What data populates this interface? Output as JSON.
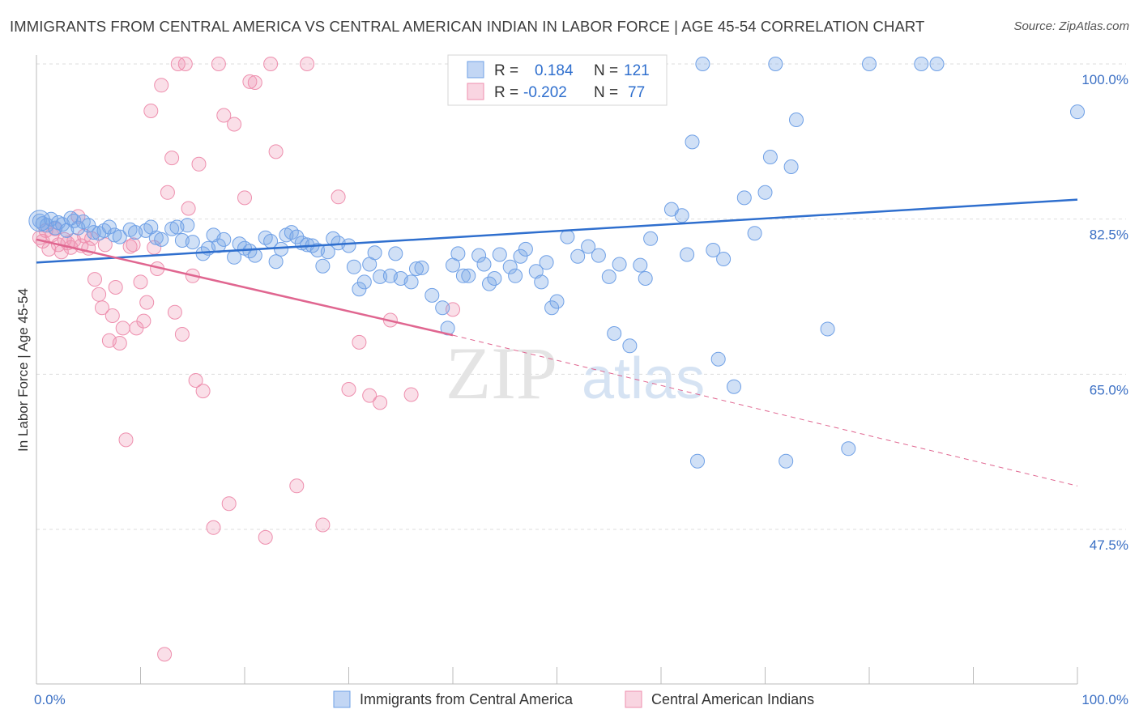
{
  "title": "IMMIGRANTS FROM CENTRAL AMERICA VS CENTRAL AMERICAN INDIAN IN LABOR FORCE | AGE 45-54 CORRELATION CHART",
  "source": "Source: ZipAtlas.com",
  "watermark": {
    "zip": "ZIP",
    "atlas": "atlas"
  },
  "colors": {
    "blue": "#6fa0e6",
    "blue_fill": "rgba(120,165,230,0.35)",
    "blue_line": "#2f6fce",
    "pink": "#ee8fae",
    "pink_fill": "rgba(240,150,180,0.30)",
    "pink_line": "#e06690",
    "tick": "#3a6fc4"
  },
  "stats": {
    "blue": {
      "r_label": "R =",
      "r": "0.184",
      "n_label": "N =",
      "n": "121"
    },
    "pink": {
      "r_label": "R =",
      "r": "-0.202",
      "n_label": "N =",
      "n": "77"
    }
  },
  "chart_data": {
    "type": "scatter",
    "ylabel": "In Labor Force | Age 45-54",
    "xlim": [
      0,
      100
    ],
    "ylim": [
      30,
      101
    ],
    "x_tick_labels": [
      "0.0%",
      "100.0%"
    ],
    "y_ticks": [
      {
        "value": 100,
        "label": "100.0%"
      },
      {
        "value": 82.5,
        "label": "82.5%"
      },
      {
        "value": 65,
        "label": "65.0%"
      },
      {
        "value": 47.5,
        "label": "47.5%"
      }
    ],
    "grid": "horizontal-dashed",
    "legend_position": "bottom-center",
    "series": [
      {
        "name": "Immigrants from Central America",
        "color": "#6fa0e6",
        "trend": {
          "x": [
            0,
            100
          ],
          "y": [
            77.6,
            84.7
          ],
          "dashed": false
        },
        "points": [
          [
            0.3,
            82.3
          ],
          [
            0.6,
            82.0
          ],
          [
            1.0,
            81.8
          ],
          [
            1.4,
            82.5
          ],
          [
            1.8,
            81.5
          ],
          [
            2.1,
            82.1
          ],
          [
            2.5,
            81.9
          ],
          [
            2.9,
            81.2
          ],
          [
            3.3,
            82.6
          ],
          [
            3.6,
            82.3
          ],
          [
            4.0,
            81.5
          ],
          [
            4.5,
            82.2
          ],
          [
            5.0,
            81.8
          ],
          [
            5.5,
            81.0
          ],
          [
            6.0,
            80.9
          ],
          [
            6.5,
            81.2
          ],
          [
            7.0,
            81.6
          ],
          [
            7.5,
            80.7
          ],
          [
            8.0,
            80.5
          ],
          [
            9.0,
            81.3
          ],
          [
            9.5,
            81.0
          ],
          [
            10.5,
            81.2
          ],
          [
            11.0,
            81.6
          ],
          [
            11.5,
            80.4
          ],
          [
            12.0,
            80.2
          ],
          [
            13.0,
            81.4
          ],
          [
            13.5,
            81.6
          ],
          [
            14.0,
            80.1
          ],
          [
            14.5,
            81.8
          ],
          [
            15.0,
            79.9
          ],
          [
            16.0,
            78.6
          ],
          [
            16.5,
            79.2
          ],
          [
            17.0,
            80.7
          ],
          [
            17.5,
            79.5
          ],
          [
            18.0,
            80.2
          ],
          [
            19.0,
            78.2
          ],
          [
            19.5,
            79.7
          ],
          [
            20.0,
            79.2
          ],
          [
            20.5,
            78.9
          ],
          [
            21.0,
            78.4
          ],
          [
            22.0,
            80.4
          ],
          [
            22.5,
            80.0
          ],
          [
            23.0,
            77.7
          ],
          [
            23.5,
            79.1
          ],
          [
            24.0,
            80.7
          ],
          [
            24.5,
            81.0
          ],
          [
            25.0,
            80.5
          ],
          [
            25.5,
            79.8
          ],
          [
            26.0,
            79.6
          ],
          [
            26.5,
            79.5
          ],
          [
            27.0,
            79.0
          ],
          [
            27.5,
            77.2
          ],
          [
            28.0,
            78.8
          ],
          [
            28.5,
            80.3
          ],
          [
            29.0,
            79.8
          ],
          [
            30.0,
            79.5
          ],
          [
            30.5,
            77.1
          ],
          [
            31.0,
            74.6
          ],
          [
            31.5,
            75.4
          ],
          [
            32.0,
            77.4
          ],
          [
            32.5,
            78.7
          ],
          [
            33.0,
            76.0
          ],
          [
            34.0,
            76.1
          ],
          [
            34.5,
            78.6
          ],
          [
            35.0,
            75.8
          ],
          [
            36.0,
            75.4
          ],
          [
            36.5,
            76.9
          ],
          [
            37.0,
            77.0
          ],
          [
            38.0,
            73.9
          ],
          [
            39.0,
            72.5
          ],
          [
            39.5,
            70.2
          ],
          [
            40.0,
            77.3
          ],
          [
            40.5,
            78.6
          ],
          [
            41.0,
            76.1
          ],
          [
            41.5,
            76.1
          ],
          [
            42.5,
            78.4
          ],
          [
            43.0,
            77.4
          ],
          [
            43.5,
            75.2
          ],
          [
            44.0,
            75.8
          ],
          [
            44.5,
            78.5
          ],
          [
            45.5,
            77.1
          ],
          [
            46.0,
            76.1
          ],
          [
            46.5,
            78.3
          ],
          [
            47.0,
            79.1
          ],
          [
            48.0,
            76.6
          ],
          [
            48.5,
            75.4
          ],
          [
            49.0,
            77.6
          ],
          [
            49.5,
            72.5
          ],
          [
            50.0,
            73.2
          ],
          [
            51.0,
            80.5
          ],
          [
            52.0,
            78.3
          ],
          [
            53.0,
            79.4
          ],
          [
            54.0,
            78.4
          ],
          [
            55.0,
            76.0
          ],
          [
            55.5,
            69.6
          ],
          [
            56.0,
            77.4
          ],
          [
            57.0,
            68.2
          ],
          [
            58.0,
            77.3
          ],
          [
            58.5,
            75.8
          ],
          [
            59.0,
            80.3
          ],
          [
            61.0,
            83.6
          ],
          [
            62.0,
            82.9
          ],
          [
            62.5,
            78.5
          ],
          [
            63.0,
            91.2
          ],
          [
            63.5,
            55.2
          ],
          [
            64.0,
            100.0
          ],
          [
            65.0,
            79.0
          ],
          [
            65.5,
            66.7
          ],
          [
            66.0,
            78.0
          ],
          [
            67.0,
            63.6
          ],
          [
            68.0,
            84.9
          ],
          [
            69.0,
            80.9
          ],
          [
            70.0,
            85.5
          ],
          [
            70.5,
            89.5
          ],
          [
            71.0,
            100.0
          ],
          [
            72.0,
            55.2
          ],
          [
            72.5,
            88.4
          ],
          [
            73.0,
            93.7
          ],
          [
            76.0,
            70.1
          ],
          [
            78.0,
            56.6
          ],
          [
            80.0,
            100.0
          ],
          [
            85.0,
            100.0
          ],
          [
            86.5,
            100.0
          ],
          [
            100.0,
            94.6
          ]
        ]
      },
      {
        "name": "Central American Indians",
        "color": "#ee8fae",
        "trend": {
          "x": [
            0,
            40
          ],
          "y": [
            80.2,
            69.4
          ],
          "dashed": false,
          "extension": {
            "x": [
              40,
              100
            ],
            "y": [
              69.4,
              52.4
            ]
          }
        },
        "points": [
          [
            0.3,
            80.4
          ],
          [
            0.6,
            80.0
          ],
          [
            0.9,
            81.2
          ],
          [
            1.2,
            79.1
          ],
          [
            1.5,
            80.7
          ],
          [
            1.8,
            81.4
          ],
          [
            2.1,
            79.6
          ],
          [
            2.4,
            78.8
          ],
          [
            2.7,
            80.2
          ],
          [
            3.0,
            79.8
          ],
          [
            3.3,
            79.3
          ],
          [
            3.6,
            80.1
          ],
          [
            4.0,
            82.8
          ],
          [
            4.3,
            79.5
          ],
          [
            4.6,
            80.6
          ],
          [
            5.0,
            79.2
          ],
          [
            5.3,
            80.3
          ],
          [
            5.6,
            75.7
          ],
          [
            6.0,
            74.0
          ],
          [
            6.3,
            72.5
          ],
          [
            6.6,
            79.6
          ],
          [
            7.0,
            68.8
          ],
          [
            7.3,
            71.6
          ],
          [
            7.6,
            74.8
          ],
          [
            8.0,
            68.5
          ],
          [
            8.3,
            70.2
          ],
          [
            8.6,
            57.6
          ],
          [
            9.0,
            79.4
          ],
          [
            9.3,
            79.6
          ],
          [
            9.6,
            70.2
          ],
          [
            10.0,
            75.4
          ],
          [
            10.3,
            71.0
          ],
          [
            10.6,
            73.1
          ],
          [
            11.0,
            94.7
          ],
          [
            11.3,
            79.3
          ],
          [
            11.6,
            76.9
          ],
          [
            12.0,
            97.6
          ],
          [
            12.3,
            33.4
          ],
          [
            12.6,
            85.5
          ],
          [
            13.0,
            89.4
          ],
          [
            13.3,
            72.0
          ],
          [
            13.6,
            100.0
          ],
          [
            14.0,
            69.5
          ],
          [
            14.3,
            100.0
          ],
          [
            14.6,
            83.7
          ],
          [
            15.0,
            76.1
          ],
          [
            15.3,
            64.3
          ],
          [
            15.6,
            88.7
          ],
          [
            16.0,
            63.1
          ],
          [
            17.0,
            47.7
          ],
          [
            17.5,
            100.0
          ],
          [
            18.0,
            94.2
          ],
          [
            18.5,
            50.4
          ],
          [
            19.0,
            93.2
          ],
          [
            20.0,
            84.9
          ],
          [
            20.5,
            98.0
          ],
          [
            21.0,
            97.9
          ],
          [
            22.0,
            46.6
          ],
          [
            22.5,
            100.0
          ],
          [
            23.0,
            90.1
          ],
          [
            25.0,
            52.4
          ],
          [
            26.0,
            100.0
          ],
          [
            27.5,
            48.0
          ],
          [
            29.0,
            85.0
          ],
          [
            30.0,
            63.3
          ],
          [
            31.0,
            68.6
          ],
          [
            32.0,
            62.6
          ],
          [
            33.0,
            61.8
          ],
          [
            34.0,
            71.1
          ],
          [
            36.0,
            62.7
          ],
          [
            40.0,
            72.3
          ]
        ]
      }
    ]
  }
}
